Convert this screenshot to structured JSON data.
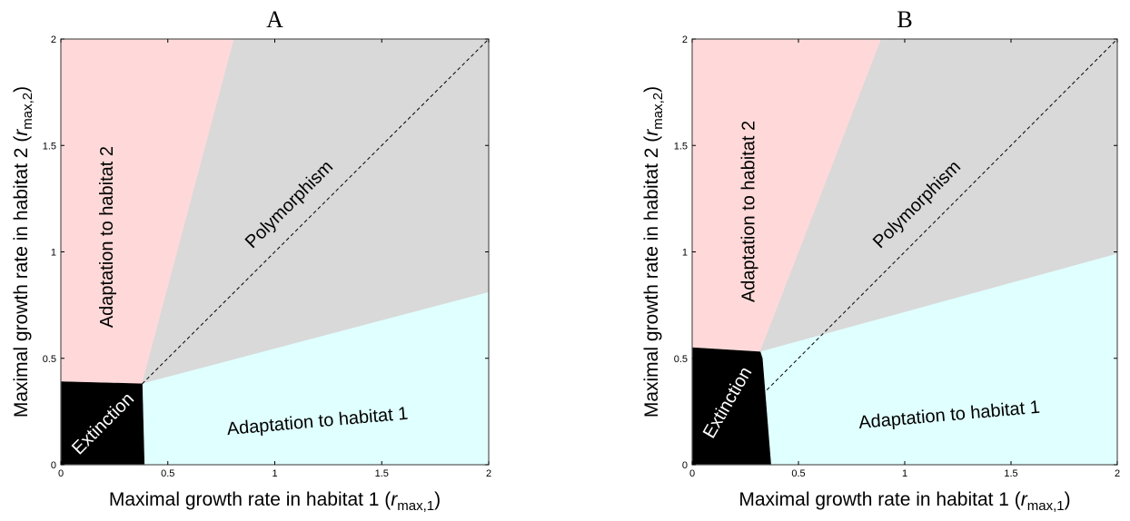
{
  "chart_data": [
    {
      "type": "area",
      "title": "A",
      "xlabel": {
        "prefix": "Maximal growth rate in habitat 1 (",
        "var": "r",
        "sub": "max,1",
        "suffix": ")"
      },
      "ylabel": {
        "prefix": "Maximal growth rate in habitat 2 (",
        "var": "r",
        "sub": "max,2",
        "suffix": ")"
      },
      "xlim": [
        0,
        2
      ],
      "ylim": [
        0,
        2
      ],
      "xticks": [
        0,
        0.5,
        1,
        1.5,
        2
      ],
      "yticks": [
        0,
        0.5,
        1,
        1.5,
        2
      ],
      "xtick_labels": [
        "0",
        "0.5",
        "1",
        "1.5",
        "2"
      ],
      "ytick_labels": [
        "0",
        "0.5",
        "1",
        "1.5",
        "2"
      ],
      "regions": [
        {
          "name": "Adaptation to habitat 2",
          "color": "#ffd9d9",
          "points": [
            [
              0,
              0.39
            ],
            [
              0.38,
              0.38
            ],
            [
              0.81,
              2
            ],
            [
              0,
              2
            ]
          ]
        },
        {
          "name": "Polymorphism",
          "color": "#d9d9d9",
          "points": [
            [
              0.38,
              0.38
            ],
            [
              2,
              0.81
            ],
            [
              2,
              2
            ],
            [
              0.81,
              2
            ]
          ]
        },
        {
          "name": "Adaptation to habitat 1",
          "color": "#e0ffff",
          "points": [
            [
              0.39,
              0
            ],
            [
              2,
              0
            ],
            [
              2,
              0.81
            ],
            [
              0.38,
              0.38
            ]
          ]
        },
        {
          "name": "Extinction",
          "color": "#000000",
          "points": [
            [
              0,
              0
            ],
            [
              0.39,
              0
            ],
            [
              0.38,
              0.38
            ],
            [
              0,
              0.39
            ]
          ]
        }
      ],
      "diagonal": {
        "style": "dashed",
        "from": [
          0.38,
          0.38
        ],
        "to": [
          2,
          2
        ]
      },
      "annotations": [
        {
          "text": "Adaptation to habitat 2",
          "x": 0.22,
          "y": 1.07,
          "rotation": -90
        },
        {
          "text": "Polymorphism",
          "x": 1.07,
          "y": 1.22,
          "rotation": -45
        },
        {
          "text": "Adaptation to habitat 1",
          "x": 1.2,
          "y": 0.2,
          "rotation": -5
        },
        {
          "text": "Extinction",
          "x": 0.2,
          "y": 0.19,
          "rotation": -45
        }
      ]
    },
    {
      "type": "area",
      "title": "B",
      "xlabel": {
        "prefix": "Maximal growth rate in habitat 1 (",
        "var": "r",
        "sub": "max,1",
        "suffix": ")"
      },
      "ylabel": {
        "prefix": "Maximal growth rate in habitat 2 (",
        "var": "r",
        "sub": "max,2",
        "suffix": ")"
      },
      "xlim": [
        0,
        2
      ],
      "ylim": [
        0,
        2
      ],
      "xticks": [
        0,
        0.5,
        1,
        1.5,
        2
      ],
      "yticks": [
        0,
        0.5,
        1,
        1.5,
        2
      ],
      "xtick_labels": [
        "0",
        "0.5",
        "1",
        "1.5",
        "2"
      ],
      "ytick_labels": [
        "0",
        "0.5",
        "1",
        "1.5",
        "2"
      ],
      "regions": [
        {
          "name": "Adaptation to habitat 2",
          "color": "#ffd9d9",
          "points": [
            [
              0,
              0.55
            ],
            [
              0.32,
              0.53
            ],
            [
              0.89,
              2
            ],
            [
              0,
              2
            ]
          ]
        },
        {
          "name": "Polymorphism",
          "color": "#d9d9d9",
          "points": [
            [
              0.32,
              0.53
            ],
            [
              2,
              0.99
            ],
            [
              2,
              2
            ],
            [
              0.89,
              2
            ]
          ]
        },
        {
          "name": "Adaptation to habitat 1",
          "color": "#e0ffff",
          "points": [
            [
              0.37,
              0
            ],
            [
              2,
              0
            ],
            [
              2,
              0.99
            ],
            [
              0.32,
              0.53
            ],
            [
              0.33,
              0.5
            ]
          ]
        },
        {
          "name": "Extinction",
          "color": "#000000",
          "points": [
            [
              0,
              0
            ],
            [
              0.37,
              0
            ],
            [
              0.33,
              0.5
            ],
            [
              0.32,
              0.53
            ],
            [
              0,
              0.55
            ]
          ]
        }
      ],
      "diagonal": {
        "style": "dashed",
        "from": [
          0.33,
          0.33
        ],
        "to": [
          2,
          2
        ]
      },
      "annotations": [
        {
          "text": "Adaptation to habitat 2",
          "x": 0.27,
          "y": 1.19,
          "rotation": -90
        },
        {
          "text": "Polymorphism",
          "x": 1.06,
          "y": 1.22,
          "rotation": -45
        },
        {
          "text": "Adaptation to habitat 1",
          "x": 1.21,
          "y": 0.23,
          "rotation": -5
        },
        {
          "text": "Extinction",
          "x": 0.17,
          "y": 0.29,
          "rotation": -60
        }
      ]
    }
  ]
}
